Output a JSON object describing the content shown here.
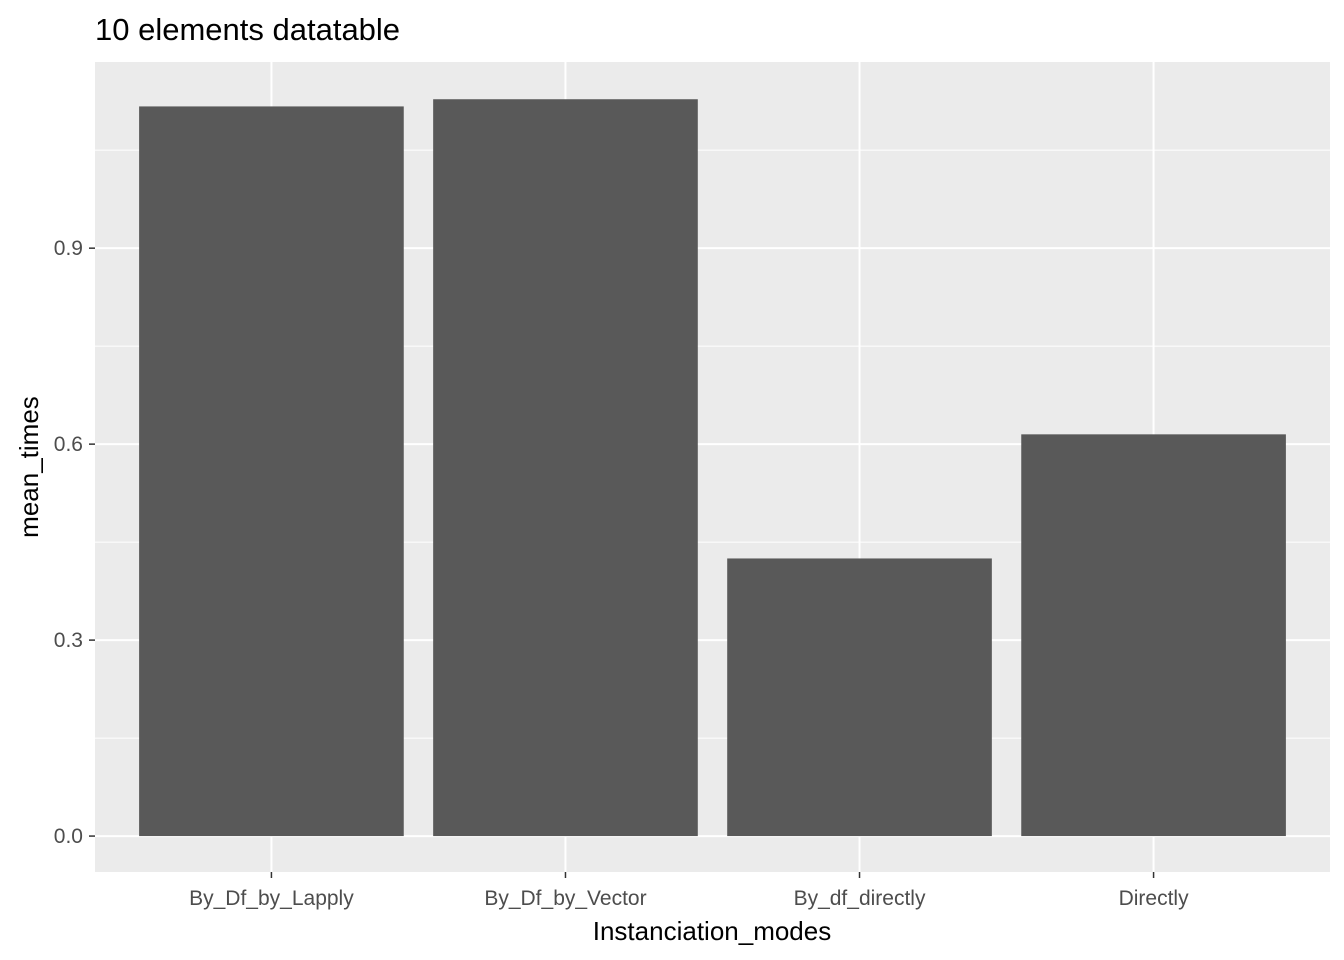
{
  "chart_data": {
    "type": "bar",
    "title": "10  elements  datatable",
    "xlabel": "Instanciation_modes",
    "ylabel": "mean_times",
    "categories": [
      "By_Df_by_Lapply",
      "By_Df_by_Vector",
      "By_df_directly",
      "Directly"
    ],
    "values": [
      1.117,
      1.128,
      0.425,
      0.615
    ],
    "ylim": [
      -0.055,
      1.185
    ],
    "yticks": [
      0.0,
      0.3,
      0.6,
      0.9
    ],
    "ytick_labels": [
      "0.0",
      "0.3",
      "0.6",
      "0.9"
    ],
    "grid": true,
    "legend": "none",
    "colors": {
      "bar": "#595959",
      "panel_background": "#ebebeb",
      "grid": "#ffffff",
      "tick_text": "#4d4d4d"
    }
  }
}
